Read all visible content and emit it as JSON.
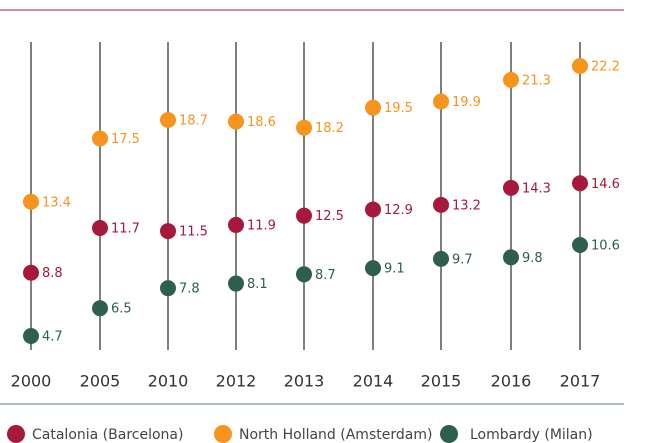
{
  "chart_data": {
    "type": "dot",
    "categories": [
      "2000",
      "2005",
      "2010",
      "2012",
      "2013",
      "2014",
      "2015",
      "2016",
      "2017"
    ],
    "series": [
      {
        "name": "Catalonia (Barcelona)",
        "color": "#a6193c",
        "values": [
          8.8,
          11.7,
          11.5,
          11.9,
          12.5,
          12.9,
          13.2,
          14.3,
          14.6
        ]
      },
      {
        "name": "North Holland (Amsterdam)",
        "color": "#f7941d",
        "values": [
          13.4,
          17.5,
          18.7,
          18.6,
          18.2,
          19.5,
          19.9,
          21.3,
          22.2
        ]
      },
      {
        "name": "Lombardy (Milan)",
        "color": "#2e5e4e",
        "values": [
          4.7,
          6.5,
          7.8,
          8.1,
          8.7,
          9.1,
          9.7,
          9.8,
          10.6
        ]
      }
    ],
    "legend": "bottom"
  }
}
